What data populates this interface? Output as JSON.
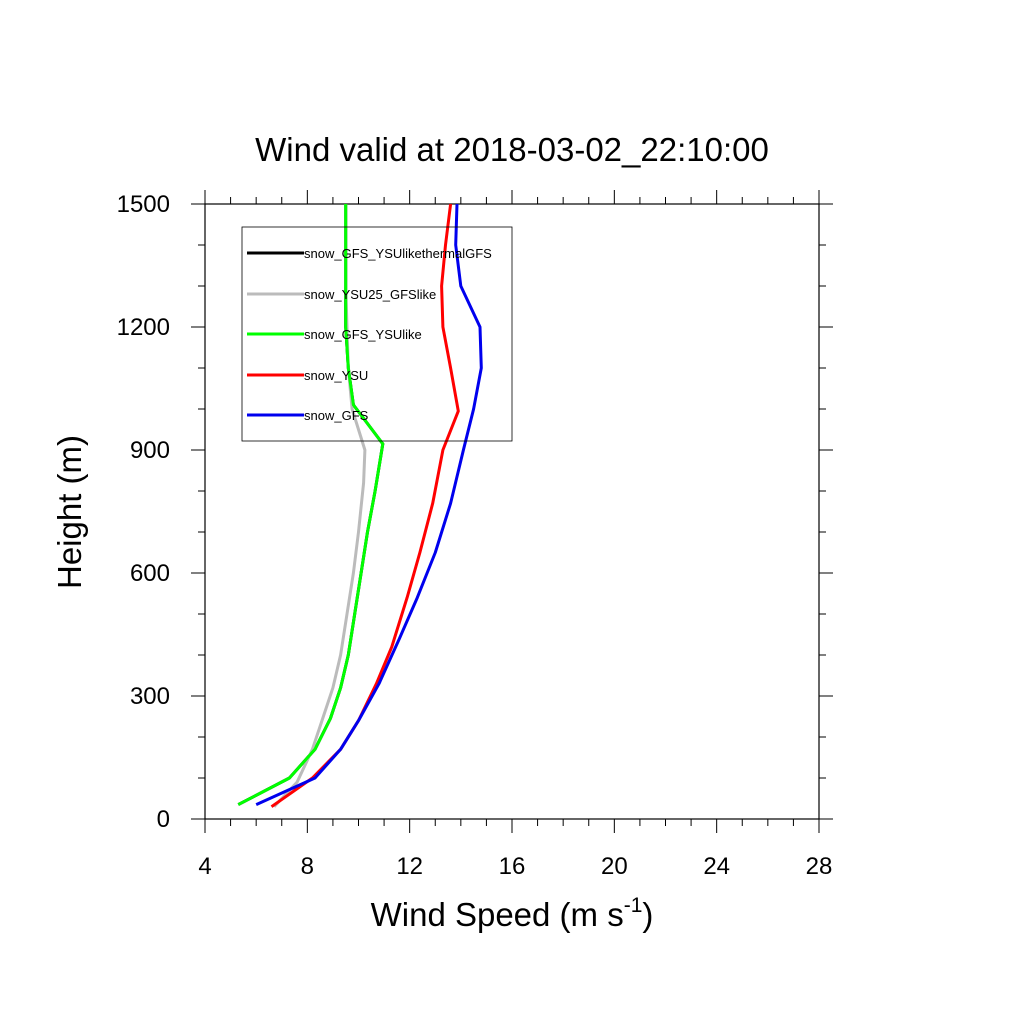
{
  "chart_data": {
    "type": "line",
    "title": "Wind valid at 2018-03-02_22:10:00",
    "xlabel": "Wind Speed (m s",
    "xlabel_superscript": "-1",
    "xlabel_suffix": ")",
    "ylabel": "Height (m)",
    "xlim": [
      4,
      28
    ],
    "ylim": [
      0,
      1500
    ],
    "x_ticks": [
      4,
      8,
      12,
      16,
      20,
      24,
      28
    ],
    "y_ticks": [
      0,
      300,
      600,
      900,
      1200,
      1500
    ],
    "x_tick_labels": [
      "4",
      "8",
      "12",
      "16",
      "20",
      "24",
      "28"
    ],
    "y_tick_labels": [
      "0",
      "300",
      "600",
      "900",
      "1200",
      "1500"
    ],
    "grid": false,
    "legend_position": "top-left",
    "series": [
      {
        "name": "snow_GFS_YSUlikethermalGFS",
        "color": "#000000",
        "points": [
          [
            5.3,
            35
          ],
          [
            7.3,
            100
          ],
          [
            8.3,
            170
          ],
          [
            8.9,
            245
          ],
          [
            9.3,
            320
          ],
          [
            9.6,
            400
          ],
          [
            9.85,
            500
          ],
          [
            10.1,
            600
          ],
          [
            10.35,
            700
          ],
          [
            10.65,
            800
          ],
          [
            10.95,
            915
          ],
          [
            9.8,
            1010
          ],
          [
            9.6,
            1100
          ],
          [
            9.5,
            1200
          ],
          [
            9.5,
            1300
          ],
          [
            9.5,
            1400
          ],
          [
            9.5,
            1500
          ]
        ]
      },
      {
        "name": "snow_YSU25_GFSlike",
        "color": "#bbbbbb",
        "points": [
          [
            6.7,
            30
          ],
          [
            7.6,
            90
          ],
          [
            8.2,
            170
          ],
          [
            8.6,
            245
          ],
          [
            9.0,
            320
          ],
          [
            9.3,
            400
          ],
          [
            9.55,
            500
          ],
          [
            9.8,
            600
          ],
          [
            10.0,
            700
          ],
          [
            10.2,
            820
          ],
          [
            10.25,
            900
          ],
          [
            9.75,
            1000
          ],
          [
            9.6,
            1100
          ],
          [
            9.55,
            1200
          ],
          [
            9.5,
            1300
          ],
          [
            9.5,
            1400
          ],
          [
            9.5,
            1500
          ]
        ]
      },
      {
        "name": "snow_GFS_YSUlike",
        "color": "#00ff00",
        "points": [
          [
            5.3,
            35
          ],
          [
            7.3,
            100
          ],
          [
            8.3,
            170
          ],
          [
            8.9,
            245
          ],
          [
            9.3,
            320
          ],
          [
            9.6,
            400
          ],
          [
            9.85,
            500
          ],
          [
            10.1,
            600
          ],
          [
            10.35,
            700
          ],
          [
            10.65,
            800
          ],
          [
            10.95,
            915
          ],
          [
            9.8,
            1010
          ],
          [
            9.6,
            1100
          ],
          [
            9.5,
            1200
          ],
          [
            9.5,
            1300
          ],
          [
            9.5,
            1400
          ],
          [
            9.5,
            1500
          ]
        ]
      },
      {
        "name": "snow_YSU",
        "color": "#ff0000",
        "points": [
          [
            6.6,
            30
          ],
          [
            8.2,
            100
          ],
          [
            9.3,
            170
          ],
          [
            10.0,
            240
          ],
          [
            10.7,
            330
          ],
          [
            11.3,
            420
          ],
          [
            11.9,
            540
          ],
          [
            12.4,
            650
          ],
          [
            12.9,
            770
          ],
          [
            13.3,
            900
          ],
          [
            13.9,
            995
          ],
          [
            13.6,
            1100
          ],
          [
            13.3,
            1200
          ],
          [
            13.25,
            1300
          ],
          [
            13.4,
            1400
          ],
          [
            13.6,
            1500
          ]
        ]
      },
      {
        "name": "snow_GFS",
        "color": "#0000ee",
        "points": [
          [
            6.0,
            35
          ],
          [
            8.3,
            100
          ],
          [
            9.3,
            170
          ],
          [
            10.0,
            240
          ],
          [
            10.8,
            330
          ],
          [
            11.6,
            440
          ],
          [
            12.3,
            540
          ],
          [
            13.0,
            650
          ],
          [
            13.6,
            770
          ],
          [
            14.1,
            900
          ],
          [
            14.5,
            1000
          ],
          [
            14.8,
            1100
          ],
          [
            14.75,
            1200
          ],
          [
            14.0,
            1300
          ],
          [
            13.8,
            1400
          ],
          [
            13.85,
            1500
          ]
        ]
      }
    ]
  }
}
